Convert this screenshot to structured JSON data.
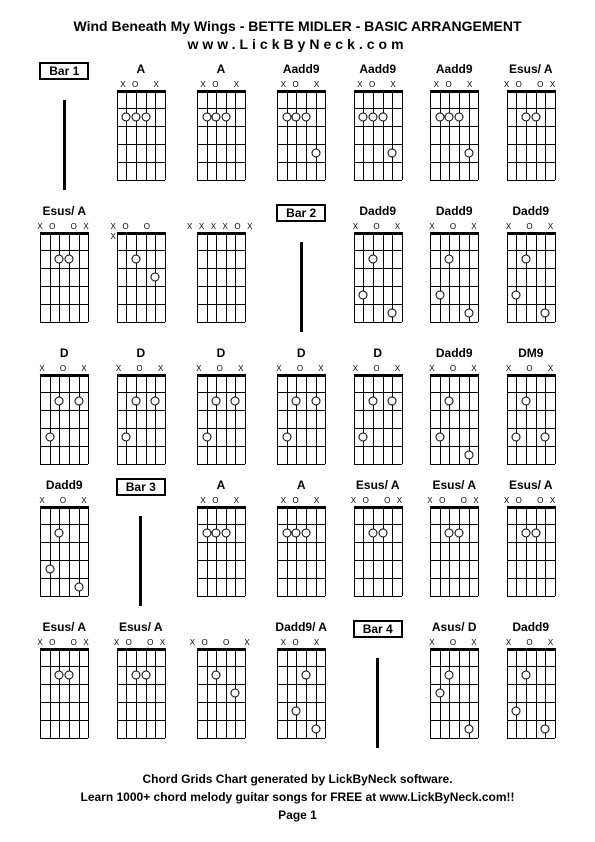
{
  "title": "Wind Beneath My Wings - BETTE MIDLER - BASIC ARRANGEMENT",
  "url": "www.LickByNeck.com",
  "footer_line1": "Chord Grids Chart generated by LickByNeck software.",
  "footer_line2": "Learn 1000+ chord melody guitar songs for FREE at www.LickByNeck.com!!",
  "footer_page": "Page 1",
  "colors": {
    "bg": "#ffffff",
    "ink": "#000000"
  },
  "diagram": {
    "strings": 6,
    "frets": 5,
    "width": 58,
    "height": 90,
    "string_spacing": 9.6,
    "fret_spacing": 18,
    "left_pad": 5
  },
  "cells": [
    {
      "type": "bar",
      "label": "Bar 1"
    },
    {
      "type": "chord",
      "label": "A",
      "open": "XO   X",
      "dots": [
        [
          2,
          2
        ],
        [
          3,
          2
        ],
        [
          4,
          2
        ]
      ]
    },
    {
      "type": "chord",
      "label": "A",
      "open": "XO   X",
      "dots": [
        [
          2,
          2
        ],
        [
          3,
          2
        ],
        [
          4,
          2
        ]
      ]
    },
    {
      "type": "chord",
      "label": "Aadd9",
      "open": "XO   X",
      "dots": [
        [
          2,
          2
        ],
        [
          3,
          2
        ],
        [
          4,
          2
        ],
        [
          5,
          4
        ]
      ]
    },
    {
      "type": "chord",
      "label": "Aadd9",
      "open": "XO   X",
      "dots": [
        [
          2,
          2
        ],
        [
          3,
          2
        ],
        [
          4,
          2
        ],
        [
          5,
          4
        ]
      ]
    },
    {
      "type": "chord",
      "label": "Aadd9",
      "open": "XO   X",
      "dots": [
        [
          2,
          2
        ],
        [
          3,
          2
        ],
        [
          4,
          2
        ],
        [
          5,
          4
        ]
      ]
    },
    {
      "type": "chord",
      "label": "Esus/ A",
      "open": "XO  OX",
      "dots": [
        [
          3,
          2
        ],
        [
          4,
          2
        ]
      ]
    },
    {
      "type": "chord",
      "label": "Esus/ A",
      "open": "XO  OX",
      "dots": [
        [
          3,
          2
        ],
        [
          4,
          2
        ]
      ]
    },
    {
      "type": "chord",
      "label": "",
      "open": "XO O X",
      "dots": [
        [
          3,
          2
        ],
        [
          5,
          3
        ]
      ]
    },
    {
      "type": "chord",
      "label": "",
      "open": "XXXXOX",
      "dots": []
    },
    {
      "type": "bar",
      "label": "Bar 2"
    },
    {
      "type": "chord",
      "label": "Dadd9",
      "open": "X  O X",
      "dots": [
        [
          3,
          2
        ],
        [
          2,
          4
        ],
        [
          5,
          5
        ]
      ]
    },
    {
      "type": "chord",
      "label": "Dadd9",
      "open": "X  O X",
      "dots": [
        [
          3,
          2
        ],
        [
          2,
          4
        ],
        [
          5,
          5
        ]
      ]
    },
    {
      "type": "chord",
      "label": "Dadd9",
      "open": "X  O X",
      "dots": [
        [
          3,
          2
        ],
        [
          2,
          4
        ],
        [
          5,
          5
        ]
      ]
    },
    {
      "type": "chord",
      "label": "D",
      "open": "X  O X",
      "dots": [
        [
          3,
          2
        ],
        [
          5,
          2
        ],
        [
          2,
          4
        ]
      ]
    },
    {
      "type": "chord",
      "label": "D",
      "open": "X  O X",
      "dots": [
        [
          3,
          2
        ],
        [
          5,
          2
        ],
        [
          2,
          4
        ]
      ]
    },
    {
      "type": "chord",
      "label": "D",
      "open": "X  O X",
      "dots": [
        [
          3,
          2
        ],
        [
          5,
          2
        ],
        [
          2,
          4
        ]
      ]
    },
    {
      "type": "chord",
      "label": "D",
      "open": "X  O X",
      "dots": [
        [
          3,
          2
        ],
        [
          5,
          2
        ],
        [
          2,
          4
        ]
      ]
    },
    {
      "type": "chord",
      "label": "D",
      "open": "X  O X",
      "dots": [
        [
          3,
          2
        ],
        [
          5,
          2
        ],
        [
          2,
          4
        ]
      ]
    },
    {
      "type": "chord",
      "label": "Dadd9",
      "open": "X  O X",
      "dots": [
        [
          3,
          2
        ],
        [
          2,
          4
        ],
        [
          5,
          5
        ]
      ]
    },
    {
      "type": "chord",
      "label": "DM9",
      "open": "X  O X",
      "dots": [
        [
          3,
          2
        ],
        [
          2,
          4
        ],
        [
          5,
          4
        ]
      ]
    },
    {
      "type": "chord",
      "label": "Dadd9",
      "open": "X  O X",
      "dots": [
        [
          3,
          2
        ],
        [
          2,
          4
        ],
        [
          5,
          5
        ]
      ]
    },
    {
      "type": "bar",
      "label": "Bar 3"
    },
    {
      "type": "chord",
      "label": "A",
      "open": "XO   X",
      "dots": [
        [
          2,
          2
        ],
        [
          3,
          2
        ],
        [
          4,
          2
        ]
      ]
    },
    {
      "type": "chord",
      "label": "A",
      "open": "XO   X",
      "dots": [
        [
          2,
          2
        ],
        [
          3,
          2
        ],
        [
          4,
          2
        ]
      ]
    },
    {
      "type": "chord",
      "label": "Esus/ A",
      "open": "XO  OX",
      "dots": [
        [
          3,
          2
        ],
        [
          4,
          2
        ]
      ]
    },
    {
      "type": "chord",
      "label": "Esus/ A",
      "open": "XO  OX",
      "dots": [
        [
          3,
          2
        ],
        [
          4,
          2
        ]
      ]
    },
    {
      "type": "chord",
      "label": "Esus/ A",
      "open": "XO  OX",
      "dots": [
        [
          3,
          2
        ],
        [
          4,
          2
        ]
      ]
    },
    {
      "type": "chord",
      "label": "Esus/ A",
      "open": "XO  OX",
      "dots": [
        [
          3,
          2
        ],
        [
          4,
          2
        ]
      ]
    },
    {
      "type": "chord",
      "label": "Esus/ A",
      "open": "XO  OX",
      "dots": [
        [
          3,
          2
        ],
        [
          4,
          2
        ]
      ]
    },
    {
      "type": "chord",
      "label": "",
      "open": "XO O X",
      "dots": [
        [
          3,
          2
        ],
        [
          5,
          3
        ]
      ]
    },
    {
      "type": "chord",
      "label": "Dadd9/ A",
      "open": "XO   X",
      "dots": [
        [
          4,
          2
        ],
        [
          3,
          4
        ],
        [
          5,
          5
        ]
      ]
    },
    {
      "type": "bar",
      "label": "Bar 4"
    },
    {
      "type": "chord",
      "label": "Asus/ D",
      "open": "X  O X",
      "dots": [
        [
          3,
          2
        ],
        [
          2,
          3
        ],
        [
          5,
          5
        ]
      ]
    },
    {
      "type": "chord",
      "label": "Dadd9",
      "open": "X  O X",
      "dots": [
        [
          3,
          2
        ],
        [
          2,
          4
        ],
        [
          5,
          5
        ]
      ]
    }
  ]
}
